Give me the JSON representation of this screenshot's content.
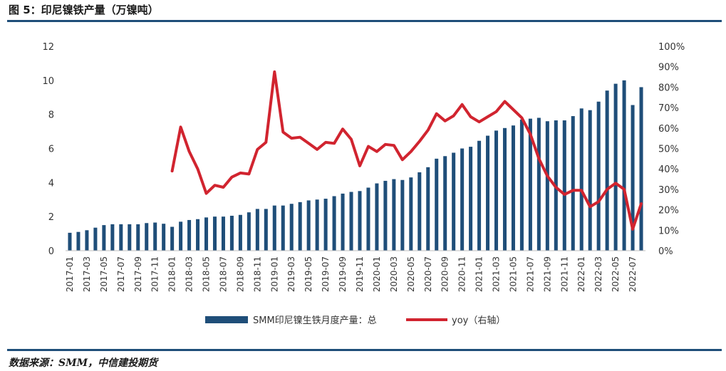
{
  "header": {
    "title": "图 5：印尼镍铁产量（万镍吨）"
  },
  "footer": {
    "source": "数据来源：SMM，中信建投期货"
  },
  "colors": {
    "bar": "#1f4e79",
    "line": "#d1242f",
    "rule": "#1f4e79"
  },
  "chart_data": {
    "type": "bar+line",
    "title": "印尼镍铁产量（万镍吨）",
    "y_left": {
      "min": 0,
      "max": 12,
      "ticks": [
        "0",
        "2",
        "4",
        "6",
        "8",
        "10",
        "12"
      ]
    },
    "y_right": {
      "min": 0,
      "max": 1,
      "ticks": [
        "0%",
        "10%",
        "20%",
        "30%",
        "40%",
        "50%",
        "60%",
        "70%",
        "80%",
        "90%",
        "100%"
      ]
    },
    "x_tick_labels": [
      "2017-01",
      "2017-03",
      "2017-05",
      "2017-07",
      "2017-09",
      "2017-11",
      "2018-01",
      "2018-03",
      "2018-05",
      "2018-07",
      "2018-09",
      "2018-11",
      "2019-01",
      "2019-03",
      "2019-05",
      "2019-07",
      "2019-09",
      "2019-11",
      "2020-01",
      "2020-03",
      "2020-05",
      "2020-07",
      "2020-09",
      "2020-11",
      "2021-01",
      "2021-03",
      "2021-05",
      "2021-07",
      "2021-09",
      "2021-11",
      "2022-01",
      "2022-03",
      "2022-05",
      "2022-07"
    ],
    "categories": [
      "2017-01",
      "2017-02",
      "2017-03",
      "2017-04",
      "2017-05",
      "2017-06",
      "2017-07",
      "2017-08",
      "2017-09",
      "2017-10",
      "2017-11",
      "2017-12",
      "2018-01",
      "2018-02",
      "2018-03",
      "2018-04",
      "2018-05",
      "2018-06",
      "2018-07",
      "2018-08",
      "2018-09",
      "2018-10",
      "2018-11",
      "2018-12",
      "2019-01",
      "2019-02",
      "2019-03",
      "2019-04",
      "2019-05",
      "2019-06",
      "2019-07",
      "2019-08",
      "2019-09",
      "2019-10",
      "2019-11",
      "2019-12",
      "2020-01",
      "2020-02",
      "2020-03",
      "2020-04",
      "2020-05",
      "2020-06",
      "2020-07",
      "2020-08",
      "2020-09",
      "2020-10",
      "2020-11",
      "2020-12",
      "2021-01",
      "2021-02",
      "2021-03",
      "2021-04",
      "2021-05",
      "2021-06",
      "2021-07",
      "2021-08",
      "2021-09",
      "2021-10",
      "2021-11",
      "2021-12",
      "2022-01",
      "2022-02",
      "2022-03",
      "2022-04",
      "2022-05",
      "2022-06",
      "2022-07",
      "2022-08"
    ],
    "series": [
      {
        "name": "SMM印尼镍生铁月度产量：总",
        "axis": "left",
        "type": "bar",
        "values": [
          1.05,
          1.1,
          1.2,
          1.35,
          1.5,
          1.55,
          1.55,
          1.55,
          1.55,
          1.62,
          1.65,
          1.58,
          1.4,
          1.7,
          1.8,
          1.85,
          1.95,
          2.0,
          2.0,
          2.05,
          2.1,
          2.25,
          2.45,
          2.45,
          2.65,
          2.65,
          2.75,
          2.85,
          2.95,
          3.0,
          3.05,
          3.2,
          3.35,
          3.45,
          3.5,
          3.7,
          3.95,
          4.1,
          4.2,
          4.15,
          4.3,
          4.6,
          4.9,
          5.4,
          5.55,
          5.75,
          6.0,
          6.1,
          6.45,
          6.75,
          7.05,
          7.2,
          7.35,
          7.7,
          7.75,
          7.8,
          7.6,
          7.65,
          7.65,
          7.9,
          8.35,
          8.25,
          8.75,
          9.4,
          9.8,
          10.0,
          8.55,
          9.6
        ]
      },
      {
        "name": "yoy（右轴）",
        "axis": "right",
        "type": "line",
        "values": [
          null,
          null,
          null,
          null,
          null,
          null,
          null,
          null,
          null,
          null,
          null,
          null,
          0.39,
          0.605,
          0.485,
          0.4,
          0.28,
          0.32,
          0.31,
          0.36,
          0.38,
          0.375,
          0.495,
          0.53,
          0.875,
          0.58,
          0.55,
          0.555,
          0.525,
          0.495,
          0.53,
          0.525,
          0.595,
          0.545,
          0.415,
          0.51,
          0.485,
          0.52,
          0.515,
          0.445,
          0.485,
          0.535,
          0.59,
          0.67,
          0.635,
          0.66,
          0.715,
          0.655,
          0.63,
          0.655,
          0.68,
          0.73,
          0.69,
          0.65,
          0.57,
          0.45,
          0.365,
          0.31,
          0.275,
          0.295,
          0.295,
          0.215,
          0.24,
          0.3,
          0.33,
          0.3,
          0.105,
          0.23
        ]
      }
    ],
    "legend_position": "bottom-center"
  }
}
